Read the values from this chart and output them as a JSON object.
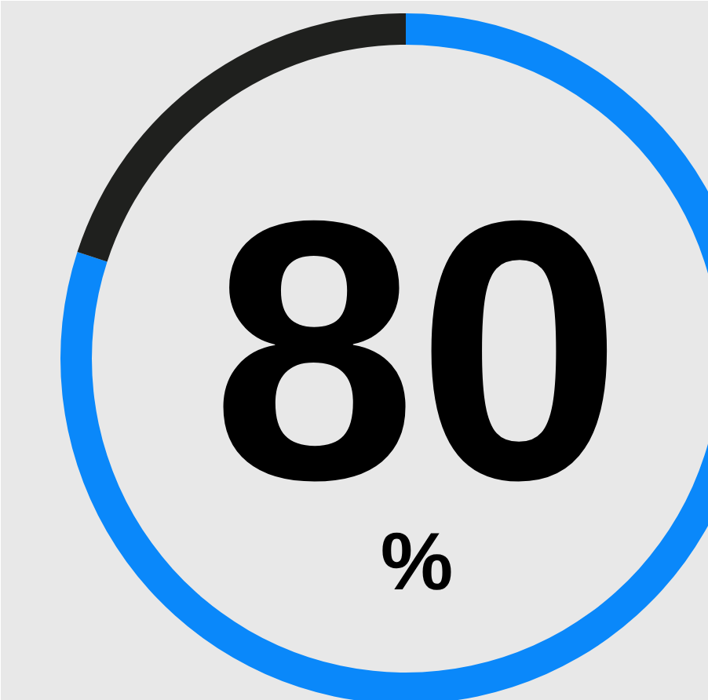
{
  "chart_data": {
    "type": "donut",
    "categories": [
      null,
      null
    ],
    "values": [
      80,
      20
    ],
    "colors": [
      "#0a88fa",
      "#1f201e"
    ],
    "annotations": [
      "80",
      "%"
    ]
  }
}
